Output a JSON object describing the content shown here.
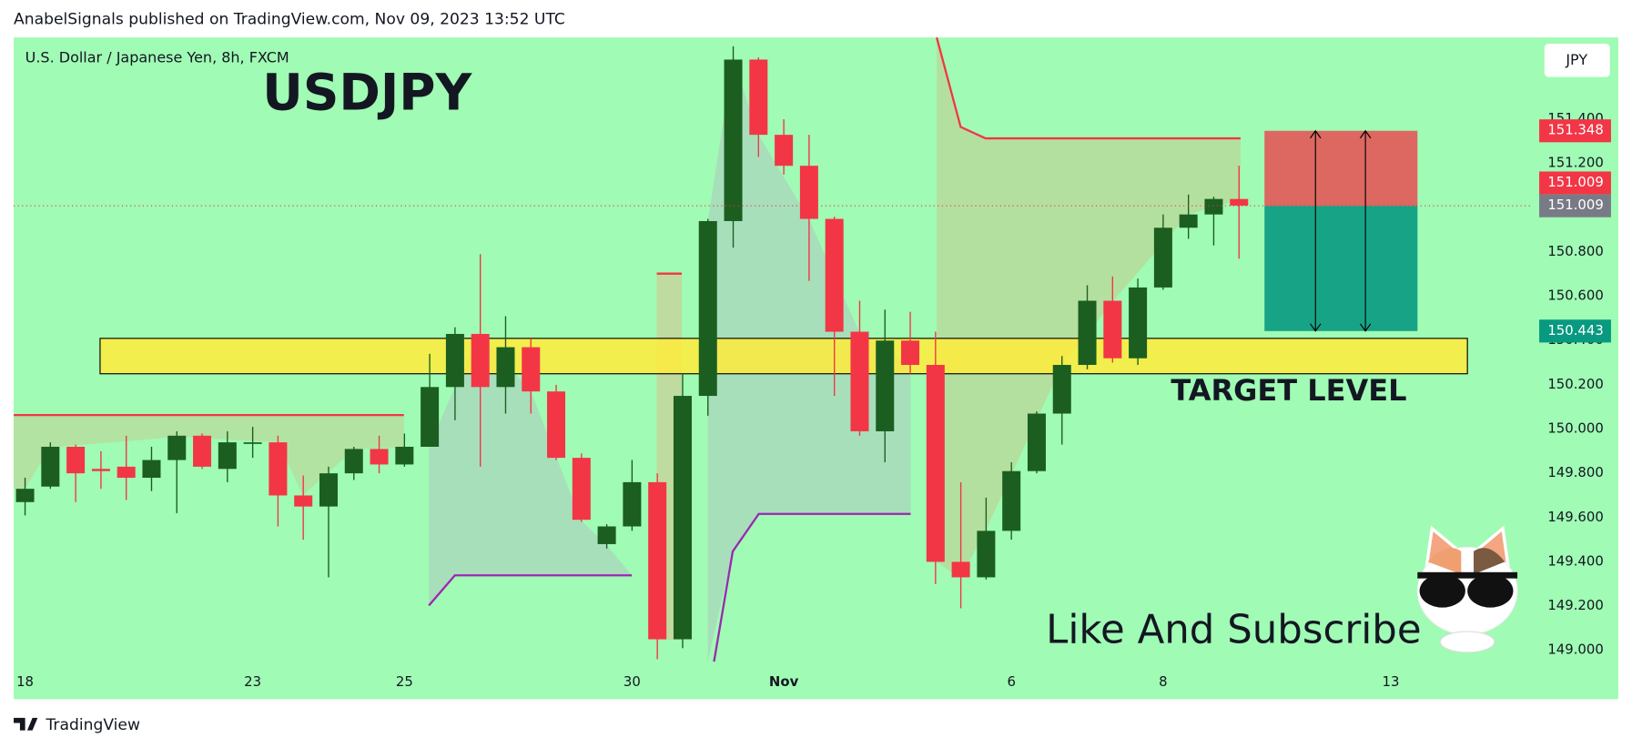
{
  "header": "AnabelSignals published on TradingView.com, Nov 09, 2023 13:52 UTC",
  "brand": "TradingView",
  "chart_data": {
    "type": "candlestick",
    "title": "U.S. Dollar / Japanese Yen, 8h, FXCM",
    "symbol": "USDJPY",
    "currency": "JPY",
    "target_label": "TARGET LEVEL",
    "caption": "Like And Subscribe",
    "up_color": "#1b5e20",
    "down_color": "#f23645",
    "open": [
      149.67,
      149.74,
      149.92,
      149.82,
      149.83,
      149.78,
      149.86,
      149.97,
      149.82,
      149.94,
      149.94,
      149.7,
      149.65,
      149.8,
      149.91,
      149.84,
      149.92,
      150.19,
      150.43,
      150.19,
      150.37,
      150.17,
      149.87,
      149.48,
      149.56,
      149.76,
      149.05,
      150.15,
      150.94,
      151.67,
      151.33,
      151.19,
      150.95,
      150.44,
      149.99,
      150.4,
      150.29,
      149.4,
      149.33,
      149.54,
      149.81,
      150.07,
      150.29,
      150.58,
      150.32,
      150.64,
      150.91,
      150.97,
      151.04
    ],
    "high": [
      149.78,
      149.94,
      149.93,
      149.9,
      149.97,
      149.92,
      149.99,
      149.98,
      149.99,
      150.01,
      149.97,
      149.79,
      149.83,
      149.92,
      149.97,
      149.98,
      150.34,
      150.46,
      150.79,
      150.51,
      150.41,
      150.2,
      149.89,
      149.57,
      149.86,
      149.8,
      150.25,
      150.95,
      151.73,
      151.68,
      151.4,
      151.33,
      150.96,
      150.58,
      150.54,
      150.53,
      150.44,
      149.76,
      149.69,
      149.85,
      150.08,
      150.33,
      150.65,
      150.69,
      150.68,
      150.97,
      151.06,
      151.05,
      151.19
    ],
    "low": [
      149.61,
      149.73,
      149.67,
      149.73,
      149.68,
      149.72,
      149.62,
      149.82,
      149.76,
      149.87,
      149.56,
      149.5,
      149.33,
      149.77,
      149.8,
      149.83,
      149.92,
      150.04,
      149.83,
      150.07,
      150.07,
      149.86,
      149.58,
      149.46,
      149.54,
      148.96,
      149.01,
      150.06,
      150.82,
      151.23,
      151.15,
      150.67,
      150.15,
      149.97,
      149.85,
      150.25,
      149.3,
      149.19,
      149.32,
      149.5,
      149.8,
      149.93,
      150.27,
      150.3,
      150.29,
      150.63,
      150.86,
      150.83,
      150.77
    ],
    "close": [
      149.73,
      149.92,
      149.8,
      149.81,
      149.78,
      149.86,
      149.97,
      149.83,
      149.94,
      149.94,
      149.7,
      149.65,
      149.8,
      149.91,
      149.84,
      149.92,
      150.19,
      150.43,
      150.19,
      150.37,
      150.17,
      149.87,
      149.59,
      149.56,
      149.76,
      149.05,
      150.15,
      150.94,
      151.67,
      151.33,
      151.19,
      150.95,
      150.44,
      149.99,
      150.4,
      150.29,
      149.4,
      149.33,
      149.54,
      149.81,
      150.07,
      150.29,
      150.58,
      150.32,
      150.64,
      150.91,
      150.97,
      151.04,
      151.01
    ],
    "xlim": [
      -0.45,
      59.5
    ],
    "xticks": [
      {
        "value": 0,
        "label": "18"
      },
      {
        "value": 9,
        "label": "23"
      },
      {
        "value": 15,
        "label": "25"
      },
      {
        "value": 24,
        "label": "30"
      },
      {
        "value": 30,
        "label": "Nov"
      },
      {
        "value": 39,
        "label": "6"
      },
      {
        "value": 45,
        "label": "8"
      },
      {
        "value": 54,
        "label": "13"
      }
    ],
    "ylim": [
      148.93,
      151.77
    ],
    "yticks": [
      {
        "value": 149.0,
        "label": "149.000"
      },
      {
        "value": 149.2,
        "label": "149.200"
      },
      {
        "value": 149.4,
        "label": "149.400"
      },
      {
        "value": 149.6,
        "label": "149.600"
      },
      {
        "value": 149.8,
        "label": "149.800"
      },
      {
        "value": 150.0,
        "label": "150.000"
      },
      {
        "value": 150.2,
        "label": "150.200"
      },
      {
        "value": 150.4,
        "label": "150.400"
      },
      {
        "value": 150.6,
        "label": "150.600"
      },
      {
        "value": 150.8,
        "label": "150.800"
      },
      {
        "value": 151.0,
        "label": "151.000"
      },
      {
        "value": 151.2,
        "label": "151.200"
      },
      {
        "value": 151.4,
        "label": "151.400"
      }
    ],
    "zone": {
      "from": 150.25,
      "to": 150.41,
      "color": "#ffeb3b"
    },
    "price_labels": [
      {
        "value": 151.348,
        "color": "#f23645"
      },
      {
        "value": 151.009,
        "color": "#f23645"
      },
      {
        "value": 151.009,
        "color": "#787b86"
      },
      {
        "value": 150.443,
        "color": "#089981"
      }
    ]
  }
}
